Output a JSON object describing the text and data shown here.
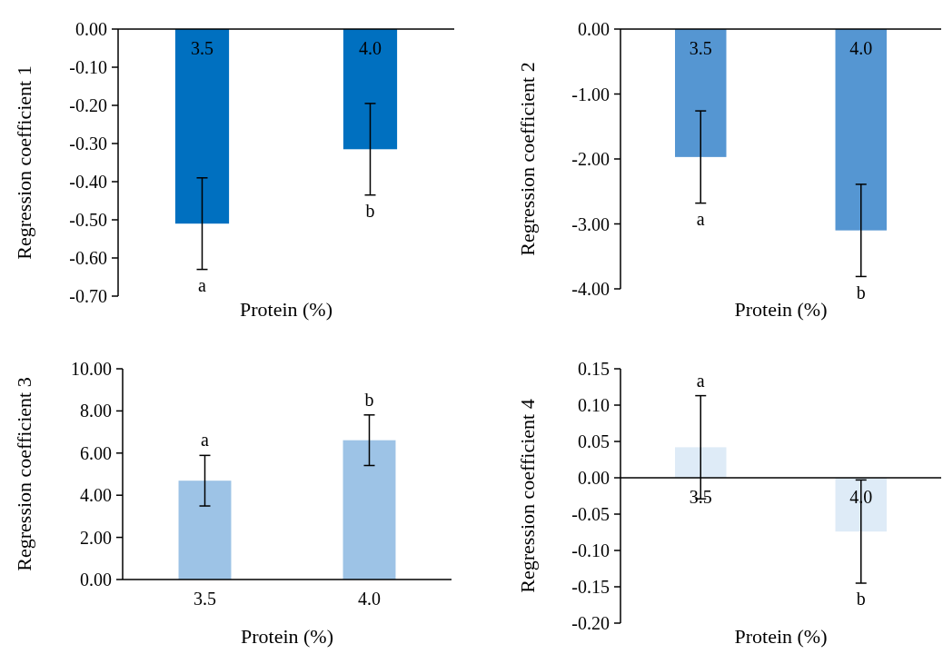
{
  "chart_data": [
    {
      "type": "bar",
      "categories": [
        "3.5",
        "4.0"
      ],
      "values": [
        -0.51,
        -0.315
      ],
      "errors": [
        0.12,
        0.12
      ],
      "color": "#0070c0",
      "xlabel": "Protein (%)",
      "ylabel": "Regression coefficient 1",
      "ylim": [
        -0.7,
        0
      ],
      "yticks": [
        {
          "value": 0,
          "label": "0.00"
        },
        {
          "value": -0.1,
          "label": "-0.10"
        },
        {
          "value": -0.2,
          "label": "-0.20"
        },
        {
          "value": -0.3,
          "label": "-0.30"
        },
        {
          "value": -0.4,
          "label": "-0.40"
        },
        {
          "value": -0.5,
          "label": "-0.50"
        },
        {
          "value": -0.6,
          "label": "-0.60"
        },
        {
          "value": -0.7,
          "label": "-0.70"
        }
      ],
      "annotations": [
        {
          "text": "a",
          "x": "3.5",
          "y": -0.63
        },
        {
          "text": "b",
          "x": "4.0",
          "y": -0.435
        }
      ]
    },
    {
      "type": "bar",
      "categories": [
        "3.5",
        "4.0"
      ],
      "values": [
        -1.97,
        -3.1
      ],
      "errors": [
        0.71,
        0.71
      ],
      "color": "#5596d2",
      "xlabel": "Protein (%)",
      "ylabel": "Regression coefficient 2",
      "ylim": [
        -4,
        0
      ],
      "yticks": [
        {
          "value": 0,
          "label": "0.00"
        },
        {
          "value": -1,
          "label": "-1.00"
        },
        {
          "value": -2,
          "label": "-2.00"
        },
        {
          "value": -3,
          "label": "-3.00"
        },
        {
          "value": -4,
          "label": "-4.00"
        }
      ],
      "annotations": [
        {
          "text": "a",
          "x": "3.5",
          "y": -2.68
        },
        {
          "text": "b",
          "x": "4.0",
          "y": -3.81
        }
      ]
    },
    {
      "type": "bar",
      "categories": [
        "3.5",
        "4.0"
      ],
      "values": [
        4.69,
        6.61
      ],
      "errors": [
        1.2,
        1.2
      ],
      "color": "#9dc3e6",
      "xlabel": "Protein (%)",
      "ylabel": "Regression coefficient 3",
      "ylim": [
        0,
        10
      ],
      "yticks": [
        {
          "value": 0,
          "label": "0.00"
        },
        {
          "value": 2,
          "label": "2.00"
        },
        {
          "value": 4,
          "label": "4.00"
        },
        {
          "value": 6,
          "label": "6.00"
        },
        {
          "value": 8,
          "label": "8.00"
        },
        {
          "value": 10,
          "label": "10.00"
        }
      ],
      "annotations": [
        {
          "text": "a",
          "x": "3.5",
          "y": 5.89
        },
        {
          "text": "b",
          "x": "4.0",
          "y": 7.81
        }
      ]
    },
    {
      "type": "bar",
      "categories": [
        "3.5",
        "4.0"
      ],
      "values": [
        0.042,
        -0.074
      ],
      "errors": [
        0.071,
        0.071
      ],
      "color": "#deebf7",
      "xlabel": "Protein (%)",
      "ylabel": "Regression coefficient 4",
      "ylim": [
        -0.2,
        0.15
      ],
      "yticks": [
        {
          "value": 0.15,
          "label": "0.15"
        },
        {
          "value": 0.1,
          "label": "0.10"
        },
        {
          "value": 0.05,
          "label": "0.05"
        },
        {
          "value": 0,
          "label": "0.00"
        },
        {
          "value": -0.05,
          "label": "-0.05"
        },
        {
          "value": -0.1,
          "label": "-0.10"
        },
        {
          "value": -0.15,
          "label": "-0.15"
        },
        {
          "value": -0.2,
          "label": "-0.20"
        }
      ],
      "annotations": [
        {
          "text": "a",
          "x": "3.5",
          "y": 0.113
        },
        {
          "text": "b",
          "x": "4.0",
          "y": -0.145
        }
      ]
    }
  ]
}
